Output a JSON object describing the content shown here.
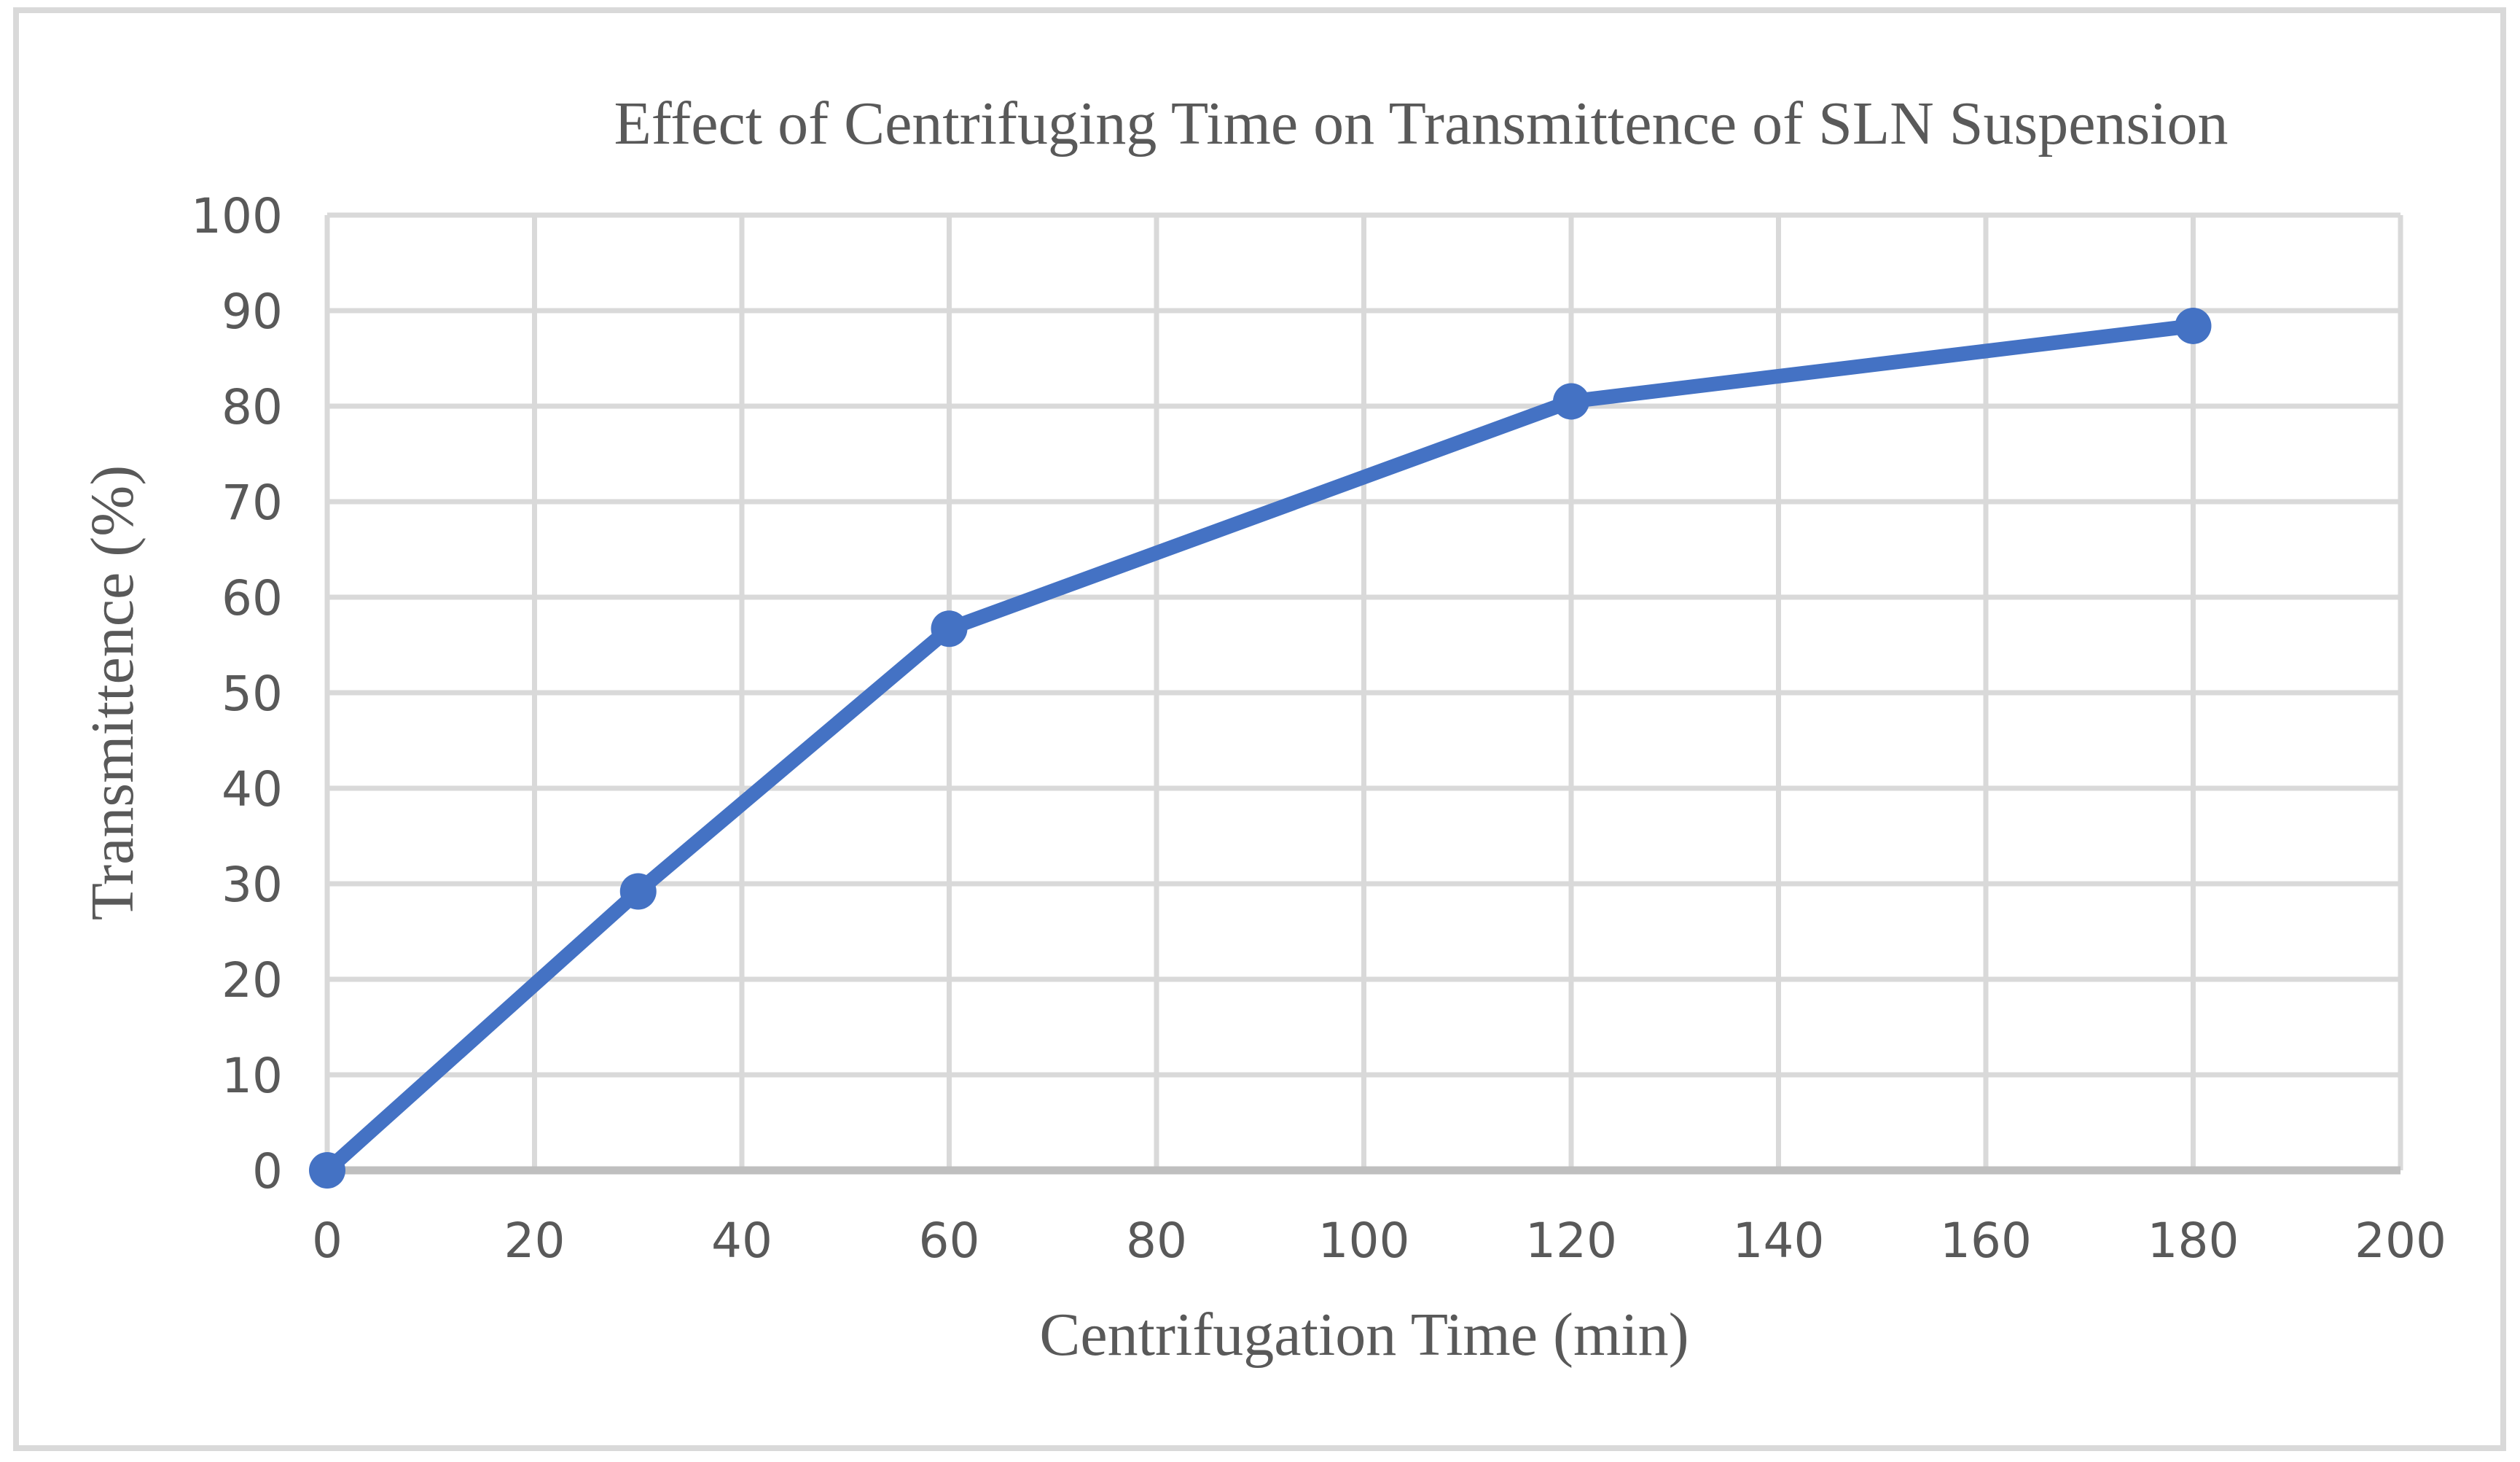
{
  "figure": {
    "background_color": "#FFFFFF",
    "frame_border_color": "#D9D9D9"
  },
  "chart_data": {
    "type": "line",
    "title": "Effect of Centrifuging Time on Transmittence of SLN Suspension",
    "xlabel": "Centrifugation Time (min)",
    "ylabel": "Transmittence (%)",
    "x": [
      0,
      30,
      60,
      120,
      180
    ],
    "values": [
      0,
      29.2,
      56.7,
      80.5,
      88.4
    ],
    "xlim": [
      0,
      200
    ],
    "ylim": [
      0,
      100
    ],
    "x_ticks": [
      0,
      20,
      40,
      60,
      80,
      100,
      120,
      140,
      160,
      180,
      200
    ],
    "y_ticks": [
      0,
      10,
      20,
      30,
      40,
      50,
      60,
      70,
      80,
      90,
      100
    ],
    "grid": "on",
    "legend_position": "none",
    "marker": "circle",
    "line_color": "#4472C4",
    "marker_color": "#4472C4",
    "gridline_color": "#D9D9D9",
    "axis_line_color": "#BFBFBF",
    "text_color": "#595959"
  }
}
